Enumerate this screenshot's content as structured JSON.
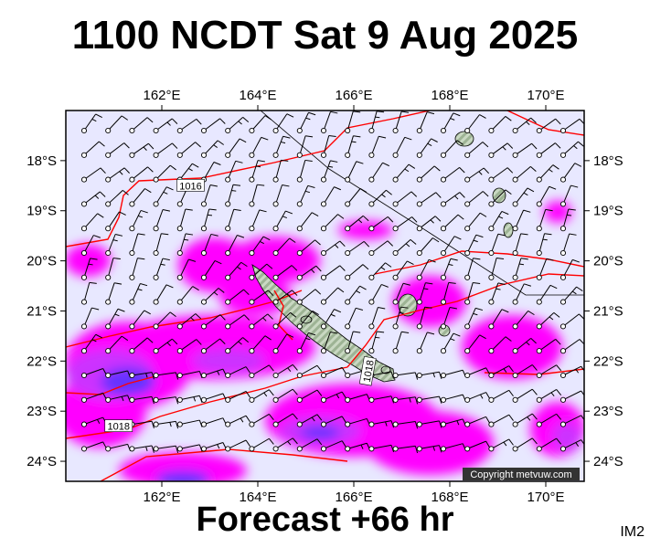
{
  "header": {
    "title": "1100 NCDT Sat 9 Aug 2025"
  },
  "footer": {
    "forecast": "Forecast +66 hr",
    "code": "IM2"
  },
  "map": {
    "lon_range": [
      160.0,
      170.8
    ],
    "lat_range": [
      -24.4,
      -17.0
    ],
    "lon_ticks": [
      {
        "value": 162,
        "label": "162°E"
      },
      {
        "value": 164,
        "label": "164°E"
      },
      {
        "value": 166,
        "label": "166°E"
      },
      {
        "value": 168,
        "label": "168°E"
      },
      {
        "value": 170,
        "label": "170°E"
      }
    ],
    "lat_ticks": [
      {
        "value": -18,
        "label": "18°S"
      },
      {
        "value": -19,
        "label": "19°S"
      },
      {
        "value": -20,
        "label": "20°S"
      },
      {
        "value": -21,
        "label": "21°S"
      },
      {
        "value": -22,
        "label": "22°S"
      },
      {
        "value": -23,
        "label": "23°S"
      },
      {
        "value": -24,
        "label": "24°S"
      }
    ],
    "isobar_labels": [
      {
        "text": "1016",
        "lon": 162.6,
        "lat": -18.5
      },
      {
        "text": "1018",
        "lon": 161.1,
        "lat": -23.3
      },
      {
        "text": "1018",
        "lon": 166.3,
        "lat": -22.2
      }
    ],
    "copyright": "Copyright metvuw.com",
    "colors": {
      "background": "#e8e8ff",
      "rain_light": "#ff00ff",
      "rain_mid": "#cc33ff",
      "rain_heavy": "#6633ff",
      "isobar": "#ff0000",
      "land": "#b8c9b0"
    }
  }
}
